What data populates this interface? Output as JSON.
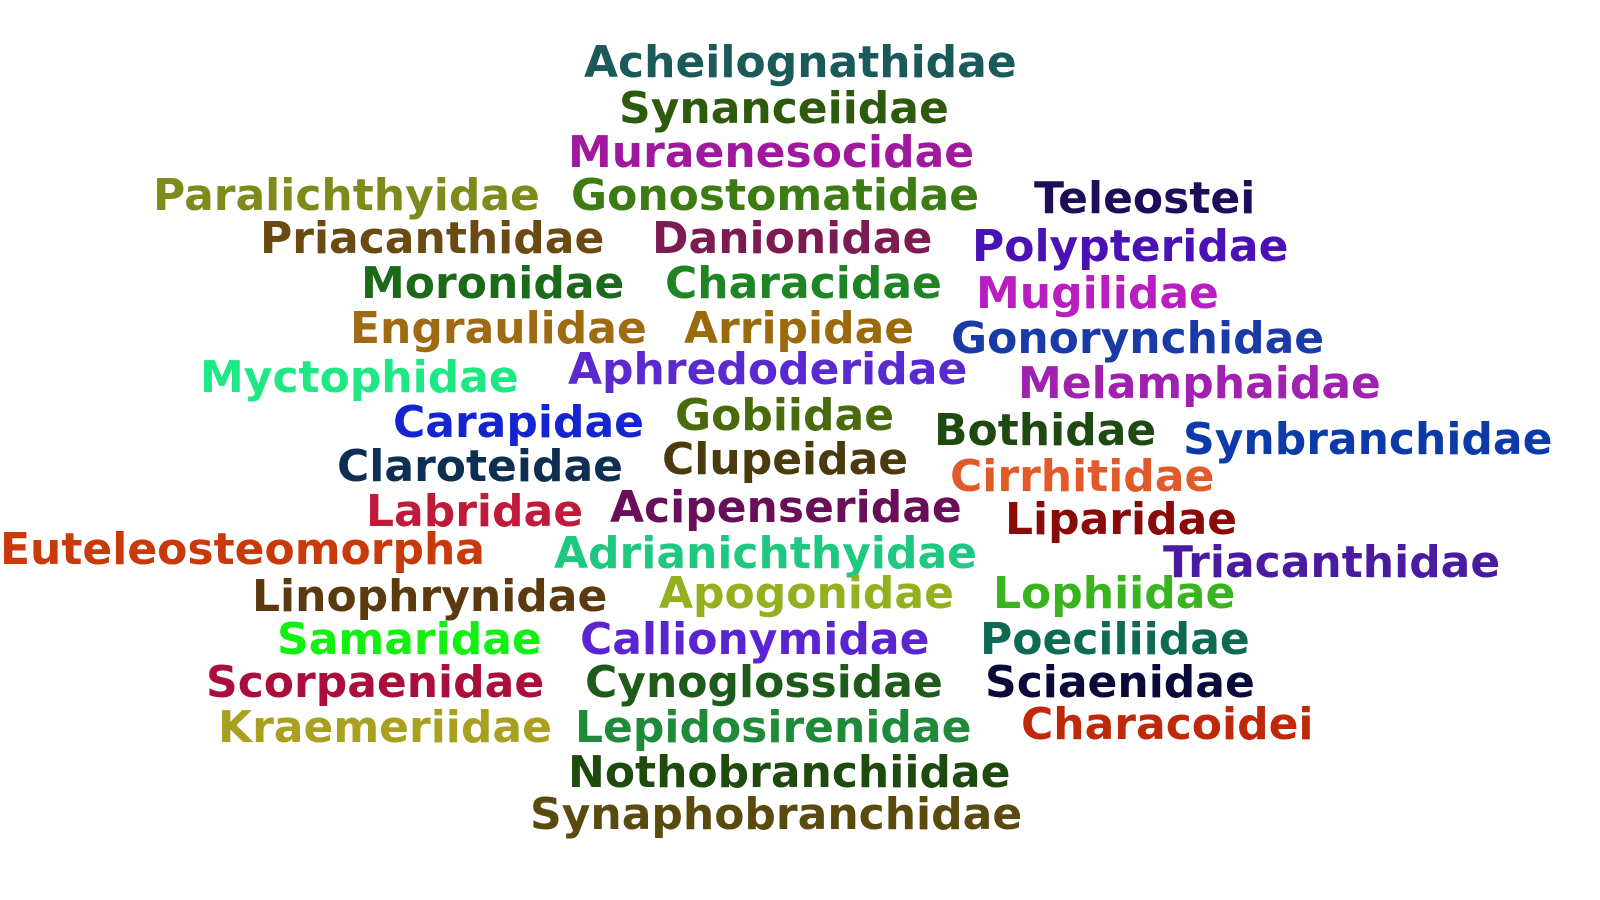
{
  "words": [
    {
      "text": "Acheilognathidae",
      "color": "#1a5a5a"
    },
    {
      "text": "Synanceiidae",
      "color": "#2e5a0e"
    },
    {
      "text": "Muraenesocidae",
      "color": "#a0189e"
    },
    {
      "text": "Paralichthyidae",
      "color": "#808a1a"
    },
    {
      "text": "Gonostomatidae",
      "color": "#3c7c12"
    },
    {
      "text": "Teleostei",
      "color": "#1e0e5a"
    },
    {
      "text": "Priacanthidae",
      "color": "#6a4a12"
    },
    {
      "text": "Danionidae",
      "color": "#7c1a52"
    },
    {
      "text": "Polypteridae",
      "color": "#4a12b4"
    },
    {
      "text": "Moronidae",
      "color": "#1a6a1a"
    },
    {
      "text": "Characidae",
      "color": "#1e8424"
    },
    {
      "text": "Mugilidae",
      "color": "#b81ec0"
    },
    {
      "text": "Engraulidae",
      "color": "#a06a12"
    },
    {
      "text": "Arripidae",
      "color": "#9a6a0c"
    },
    {
      "text": "Gonorynchidae",
      "color": "#1a3aa8"
    },
    {
      "text": "Myctophidae",
      "color": "#1ee884"
    },
    {
      "text": "Aphredoderidae",
      "color": "#5a2ad0"
    },
    {
      "text": "Melamphaidae",
      "color": "#a020b0"
    },
    {
      "text": "Carapidae",
      "color": "#1424d0"
    },
    {
      "text": "Gobiidae",
      "color": "#4a6a0e"
    },
    {
      "text": "Bothidae",
      "color": "#1e4a12"
    },
    {
      "text": "Synbranchidae",
      "color": "#0c3aa8"
    },
    {
      "text": "Claroteidae",
      "color": "#0e2e52"
    },
    {
      "text": "Clupeidae",
      "color": "#4a3a0c"
    },
    {
      "text": "Cirrhitidae",
      "color": "#e05a2a"
    },
    {
      "text": "Labridae",
      "color": "#c01a3a"
    },
    {
      "text": "Acipenseridae",
      "color": "#6a0e5a"
    },
    {
      "text": "Liparidae",
      "color": "#8a0a0a"
    },
    {
      "text": "Euteleosteomorpha",
      "color": "#c83a0a"
    },
    {
      "text": "Adrianichthyidae",
      "color": "#1ec880"
    },
    {
      "text": "Triacanthidae",
      "color": "#4a1aa0"
    },
    {
      "text": "Linophrynidae",
      "color": "#5a3a0e"
    },
    {
      "text": "Apogonidae",
      "color": "#94b01e"
    },
    {
      "text": "Lophiidae",
      "color": "#3ab41e"
    },
    {
      "text": "Samaridae",
      "color": "#12f012"
    },
    {
      "text": "Callionymidae",
      "color": "#5a24d0"
    },
    {
      "text": "Poeciliidae",
      "color": "#0e6a52"
    },
    {
      "text": "Scorpaenidae",
      "color": "#aa0e3a"
    },
    {
      "text": "Cynoglossidae",
      "color": "#1e5a1a"
    },
    {
      "text": "Sciaenidae",
      "color": "#0a0a3a"
    },
    {
      "text": "Kraemeriidae",
      "color": "#a8a01e"
    },
    {
      "text": "Lepidosirenidae",
      "color": "#1e8a3a"
    },
    {
      "text": "Characoidei",
      "color": "#c0280a"
    },
    {
      "text": "Nothobranchiidae",
      "color": "#1e4a0e"
    },
    {
      "text": "Synaphobranchidae",
      "color": "#5a4a0e"
    }
  ]
}
